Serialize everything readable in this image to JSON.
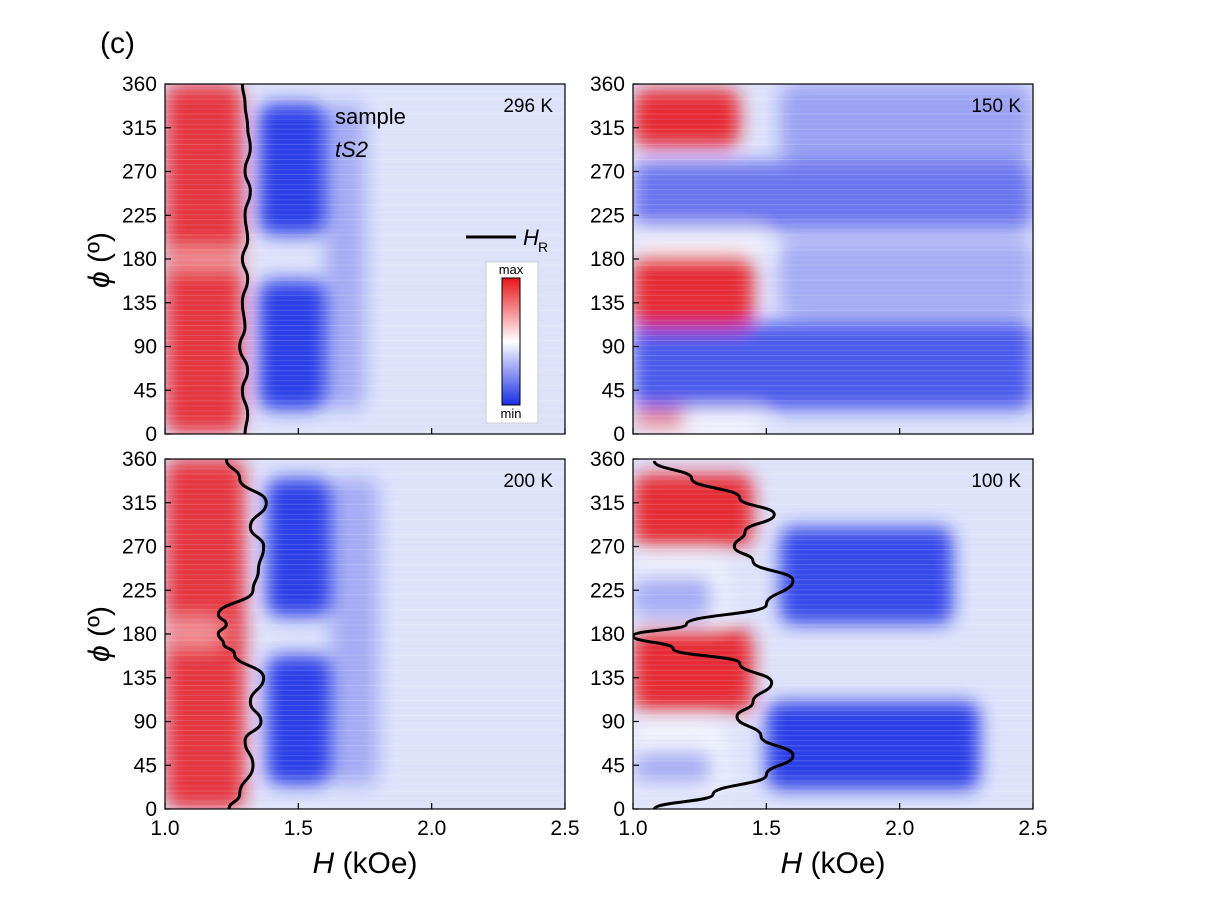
{
  "figure": {
    "panel_label": "(c)",
    "sample_label": "sample",
    "sample_name": "tS2",
    "legend_symbol": "H",
    "legend_subscript": "R",
    "colorbar_max": "max",
    "colorbar_min": "min",
    "xlabel_symbol": "H",
    "xlabel_unit": " (kOe)",
    "ylabel_symbol": "ϕ",
    "ylabel_unit": " (º)"
  },
  "colors": {
    "max": "#e8141c",
    "mid": "#ffffff",
    "min": "#1a2ee6",
    "background": "#dfe3fa",
    "hr_line": "#000000"
  },
  "chart_data": [
    {
      "type": "heatmap",
      "panel": "top-left",
      "temperature": "296 K",
      "xlim": [
        1.0,
        2.5
      ],
      "ylim": [
        0,
        360
      ],
      "xticks": [
        "1.0",
        "1.5",
        "2.0",
        "2.5"
      ],
      "yticks": [
        "0",
        "45",
        "90",
        "135",
        "180",
        "225",
        "270",
        "315",
        "360"
      ],
      "xlabel": "H (kOe)",
      "ylabel": "ϕ (º)",
      "colorbar": true,
      "colormap": [
        "min",
        "mid",
        "max"
      ],
      "hr_curve": {
        "phi": [
          0,
          20,
          45,
          65,
          90,
          110,
          135,
          160,
          180,
          200,
          225,
          250,
          270,
          295,
          315,
          340,
          360
        ],
        "H": [
          1.3,
          1.31,
          1.29,
          1.31,
          1.28,
          1.3,
          1.29,
          1.31,
          1.29,
          1.31,
          1.3,
          1.32,
          1.3,
          1.32,
          1.31,
          1.3,
          1.29
        ]
      }
    },
    {
      "type": "heatmap",
      "panel": "top-right",
      "temperature": "150 K",
      "xlim": [
        1.0,
        2.5
      ],
      "ylim": [
        0,
        360
      ],
      "xticks": [
        "1.0",
        "1.5",
        "2.0",
        "2.5"
      ],
      "yticks": [
        "0",
        "45",
        "90",
        "135",
        "180",
        "225",
        "270",
        "315",
        "360"
      ],
      "xlabel": "",
      "ylabel": "",
      "colorbar": false,
      "colormap": [
        "min",
        "mid",
        "max"
      ]
    },
    {
      "type": "heatmap",
      "panel": "bottom-left",
      "temperature": "200 K",
      "xlim": [
        1.0,
        2.5
      ],
      "ylim": [
        0,
        360
      ],
      "xticks": [
        "1.0",
        "1.5",
        "2.0",
        "2.5"
      ],
      "yticks": [
        "0",
        "45",
        "90",
        "135",
        "180",
        "225",
        "270",
        "315",
        "360"
      ],
      "xlabel": "H (kOe)",
      "ylabel": "ϕ (º)",
      "colorbar": false,
      "colormap": [
        "min",
        "mid",
        "max"
      ],
      "hr_curve": {
        "phi": [
          0,
          15,
          45,
          70,
          90,
          110,
          135,
          160,
          170,
          180,
          190,
          200,
          225,
          245,
          270,
          290,
          315,
          340,
          360
        ],
        "H": [
          1.24,
          1.28,
          1.33,
          1.3,
          1.36,
          1.32,
          1.37,
          1.26,
          1.22,
          1.2,
          1.23,
          1.2,
          1.33,
          1.35,
          1.37,
          1.32,
          1.38,
          1.28,
          1.23
        ]
      }
    },
    {
      "type": "heatmap",
      "panel": "bottom-right",
      "temperature": "100 K",
      "xlim": [
        1.0,
        2.5
      ],
      "ylim": [
        0,
        360
      ],
      "xticks": [
        "1.0",
        "1.5",
        "2.0",
        "2.5"
      ],
      "yticks": [
        "0",
        "45",
        "90",
        "135",
        "180",
        "225",
        "270",
        "315",
        "360"
      ],
      "xlabel": "H (kOe)",
      "ylabel": "",
      "colorbar": false,
      "colormap": [
        "min",
        "mid",
        "max"
      ],
      "hr_curve": {
        "phi": [
          0,
          15,
          35,
          55,
          75,
          95,
          110,
          130,
          150,
          165,
          178,
          190,
          210,
          235,
          255,
          270,
          285,
          303,
          320,
          340,
          358
        ],
        "H": [
          1.08,
          1.3,
          1.5,
          1.6,
          1.48,
          1.39,
          1.45,
          1.52,
          1.4,
          1.15,
          1.0,
          1.2,
          1.5,
          1.6,
          1.45,
          1.38,
          1.42,
          1.53,
          1.4,
          1.22,
          1.08
        ]
      }
    }
  ]
}
